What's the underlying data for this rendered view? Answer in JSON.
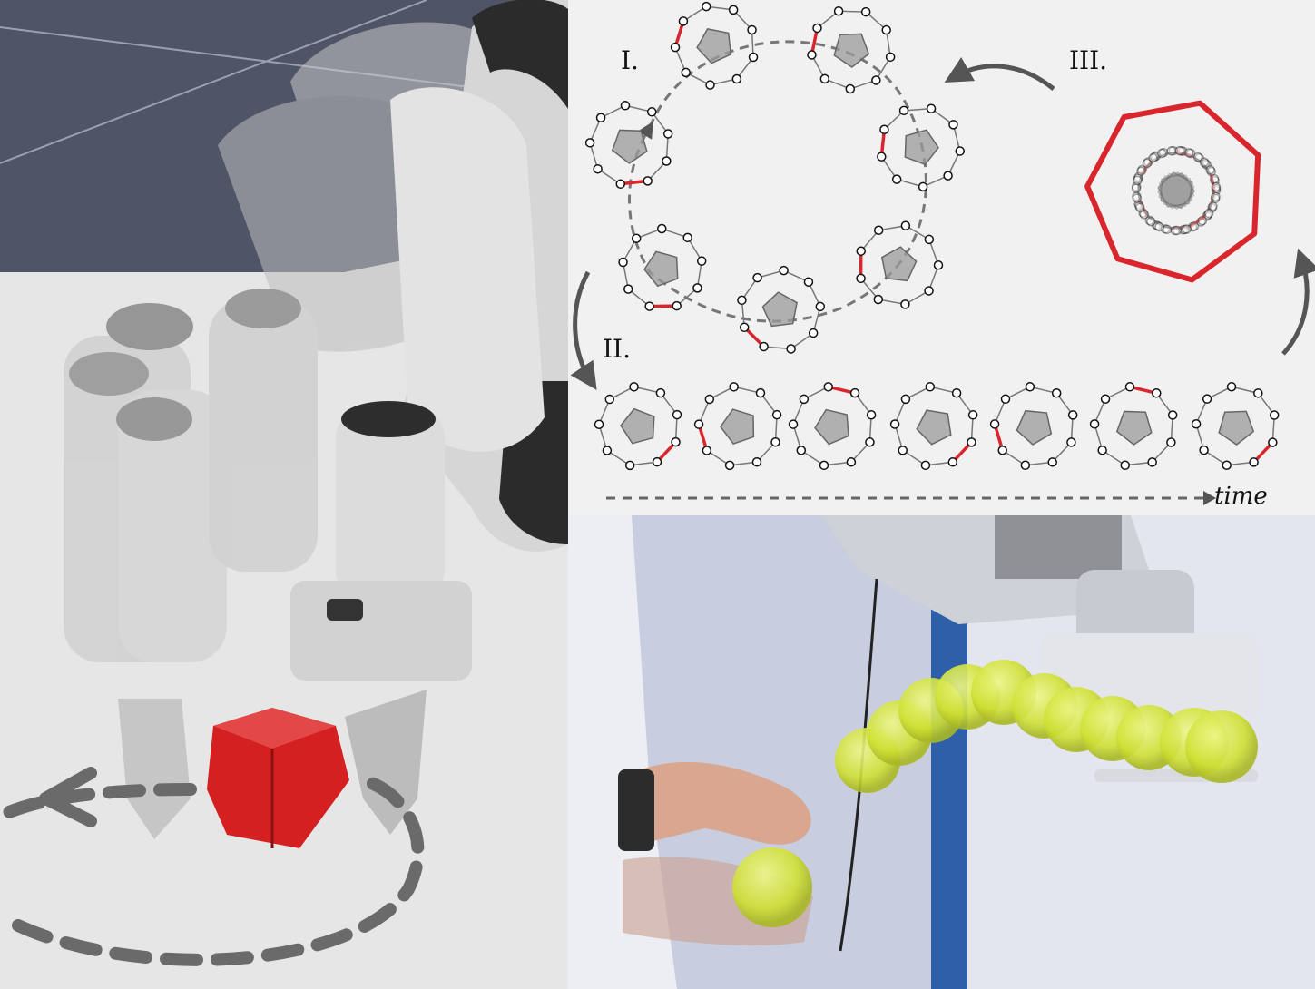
{
  "labels": {
    "stage_1": "I.",
    "stage_2": "II.",
    "stage_3": "III.",
    "time_axis": "time"
  },
  "colors": {
    "contact_edge": "#d9262c",
    "object_fill": "#9a9a9a",
    "cube": "#d42020",
    "floor_dark": "#4f5567",
    "floor_light": "#e8e8e8",
    "ball": "#d4e83a",
    "wall": "#c9cde0"
  },
  "icons": {
    "cycle_arrow": "curved-arrow-icon",
    "rotation_path": "dashed-loop-arrow-icon"
  }
}
